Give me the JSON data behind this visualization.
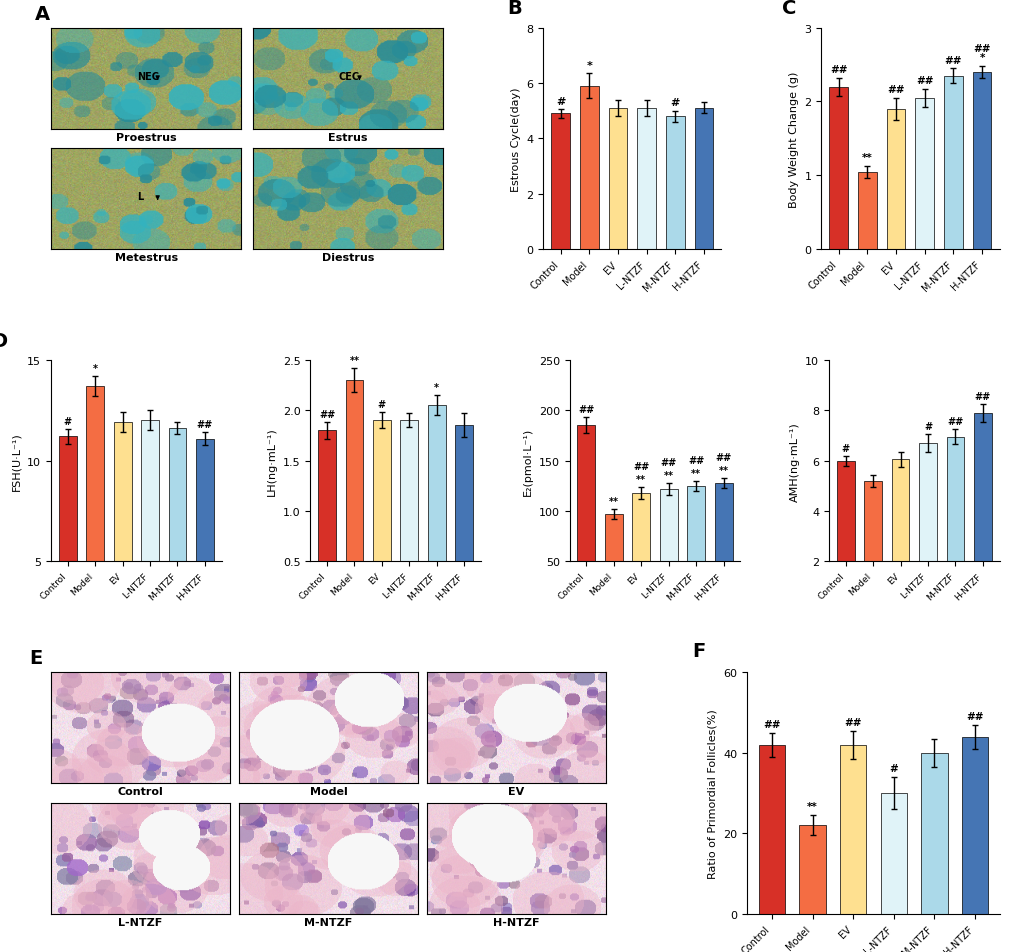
{
  "groups": [
    "Control",
    "Model",
    "EV",
    "L-NTZF",
    "M-NTZF",
    "H-NTZF"
  ],
  "bar_colors": [
    "#d73027",
    "#f46d43",
    "#fee090",
    "#e0f3f8",
    "#abd9e9",
    "#4575b4"
  ],
  "panel_B": {
    "ylabel": "Estrous Cycle(day)",
    "ylim": [
      0,
      8
    ],
    "yticks": [
      0,
      2,
      4,
      6,
      8
    ],
    "values": [
      4.9,
      5.9,
      5.1,
      5.1,
      4.8,
      5.1
    ],
    "errors": [
      0.15,
      0.45,
      0.3,
      0.3,
      0.2,
      0.2
    ],
    "annotations": [
      "#",
      "*",
      "",
      "",
      "#",
      ""
    ]
  },
  "panel_C": {
    "ylabel": "Body Weight Change (g)",
    "ylim": [
      0,
      3
    ],
    "yticks": [
      0,
      1,
      2,
      3
    ],
    "values": [
      2.2,
      1.05,
      1.9,
      2.05,
      2.35,
      2.4
    ],
    "errors": [
      0.12,
      0.08,
      0.15,
      0.12,
      0.1,
      0.08
    ],
    "annot_lines": [
      [
        "##"
      ],
      [
        "**"
      ],
      [
        "##"
      ],
      [
        "##"
      ],
      [
        "##"
      ],
      [
        "*",
        "##"
      ]
    ]
  },
  "panel_D_FSH": {
    "ylabel": "FSH(U·L⁻¹)",
    "ylim": [
      5,
      15
    ],
    "yticks": [
      5,
      10,
      15
    ],
    "values": [
      11.2,
      13.7,
      11.9,
      12.0,
      11.6,
      11.1
    ],
    "errors": [
      0.35,
      0.5,
      0.5,
      0.5,
      0.3,
      0.3
    ],
    "annot_lines": [
      [
        "#"
      ],
      [
        "*"
      ],
      [],
      [],
      [],
      [
        "##"
      ]
    ]
  },
  "panel_D_LH": {
    "ylabel": "LH(ng·mL⁻¹)",
    "ylim": [
      0.5,
      2.5
    ],
    "yticks": [
      0.5,
      1.0,
      1.5,
      2.0,
      2.5
    ],
    "values": [
      1.8,
      2.3,
      1.9,
      1.9,
      2.05,
      1.85
    ],
    "errors": [
      0.08,
      0.12,
      0.08,
      0.07,
      0.1,
      0.12
    ],
    "annot_lines": [
      [
        "##"
      ],
      [
        "**"
      ],
      [
        "#"
      ],
      [],
      [
        "*"
      ],
      []
    ]
  },
  "panel_D_E2": {
    "ylabel": "E₂(pmol·L⁻¹)",
    "ylim": [
      50,
      250
    ],
    "yticks": [
      50,
      100,
      150,
      200,
      250
    ],
    "values": [
      185,
      97,
      118,
      122,
      125,
      128
    ],
    "errors": [
      8,
      5,
      6,
      6,
      5,
      5
    ],
    "annot_lines": [
      [
        "##"
      ],
      [
        "**"
      ],
      [
        "**",
        "##"
      ],
      [
        "**",
        "##"
      ],
      [
        "**",
        "##"
      ],
      [
        "**",
        "##"
      ]
    ]
  },
  "panel_D_AMH": {
    "ylabel": "AMH(ng·mL⁻¹)",
    "ylim": [
      2,
      10
    ],
    "yticks": [
      2,
      4,
      6,
      8,
      10
    ],
    "values": [
      6.0,
      5.2,
      6.05,
      6.7,
      6.95,
      7.9
    ],
    "errors": [
      0.2,
      0.25,
      0.3,
      0.35,
      0.3,
      0.35
    ],
    "annot_lines": [
      [
        "#"
      ],
      [],
      [],
      [
        "#"
      ],
      [
        "##"
      ],
      [
        "##"
      ]
    ]
  },
  "panel_F": {
    "ylabel": "Ratio of Primordial Follicles(%)",
    "ylim": [
      0,
      60
    ],
    "yticks": [
      0,
      20,
      40,
      60
    ],
    "values": [
      42,
      22,
      42,
      30,
      40,
      44
    ],
    "errors": [
      3,
      2.5,
      3.5,
      4,
      3.5,
      3
    ],
    "annot_lines": [
      [
        "##"
      ],
      [
        "**"
      ],
      [
        "##"
      ],
      [
        "#"
      ],
      [],
      [
        "##"
      ]
    ]
  }
}
